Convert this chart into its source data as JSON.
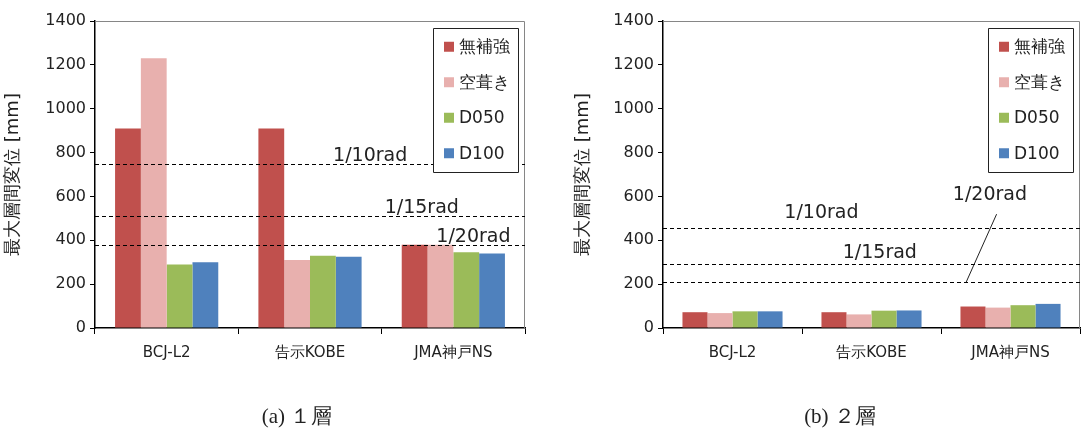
{
  "chart_data": [
    {
      "type": "bar",
      "categories": [
        "BCJ-L2",
        "告示KOBE",
        "JMA神戸NS"
      ],
      "ylabel": "最大層間変位 [mm]",
      "ylim": [
        0,
        1400
      ],
      "yticks": [
        0,
        200,
        400,
        600,
        800,
        1000,
        1200,
        1400
      ],
      "legend": "top right",
      "series": [
        {
          "name": "無補強",
          "color": "#c0504d",
          "values": [
            910,
            910,
            380
          ]
        },
        {
          "name": "空葺き",
          "color": "#e8b0ae",
          "values": [
            1230,
            310,
            380
          ]
        },
        {
          "name": "D050",
          "color": "#9bbb59",
          "values": [
            290,
            330,
            345
          ]
        },
        {
          "name": "D100",
          "color": "#4f81bd",
          "values": [
            300,
            325,
            340
          ]
        }
      ],
      "ref_lines": [
        {
          "axis": "y",
          "value": 750,
          "label": "1/10rad",
          "color": "#000000",
          "line_style": "dashed"
        },
        {
          "axis": "y",
          "value": 510,
          "label": "1/15rad",
          "color": "#000000",
          "line_style": "dashed"
        },
        {
          "axis": "y",
          "value": 378,
          "label": "1/20rad",
          "color": "#000000",
          "line_style": "dashed"
        }
      ],
      "annotations": [
        "(a) １層"
      ]
    },
    {
      "type": "bar",
      "categories": [
        "BCJ-L2",
        "告示KOBE",
        "JMA神戸NS"
      ],
      "ylabel": "最大層間変位 [mm]",
      "ylim": [
        0,
        1400
      ],
      "yticks": [
        0,
        200,
        400,
        600,
        800,
        1000,
        1200,
        1400
      ],
      "legend": "top right",
      "series": [
        {
          "name": "無補強",
          "color": "#c0504d",
          "values": [
            72,
            72,
            98
          ]
        },
        {
          "name": "空葺き",
          "color": "#e8b0ae",
          "values": [
            68,
            62,
            93
          ]
        },
        {
          "name": "D050",
          "color": "#9bbb59",
          "values": [
            76,
            79,
            104
          ]
        },
        {
          "name": "D100",
          "color": "#4f81bd",
          "values": [
            76,
            80,
            110
          ]
        }
      ],
      "ref_lines": [
        {
          "axis": "y",
          "value": 455,
          "label": "1/10rad",
          "color": "#000000",
          "line_style": "dashed"
        },
        {
          "axis": "y",
          "value": 293,
          "label": "1/15rad",
          "color": "#000000",
          "line_style": "dashed"
        },
        {
          "axis": "y",
          "value": 209,
          "label": "1/20rad",
          "color": "#000000",
          "line_style": "dashed"
        }
      ],
      "annotations": [
        "(b) ２層"
      ]
    }
  ]
}
